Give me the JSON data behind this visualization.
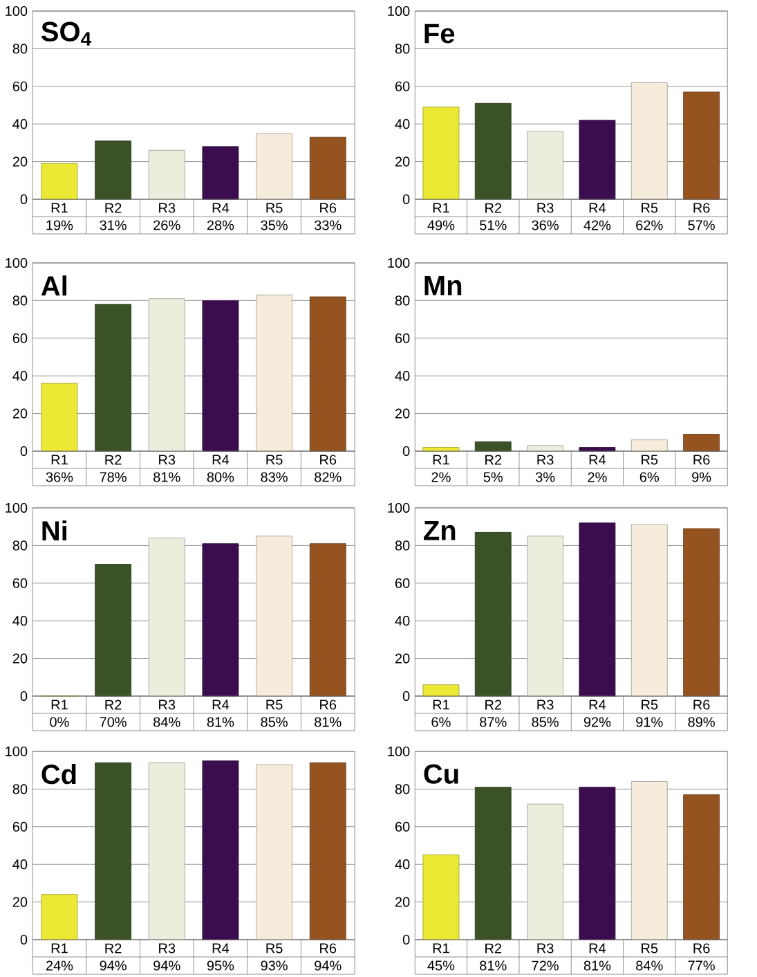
{
  "chart_data": [
    {
      "type": "bar",
      "title": "SO$_{4}$",
      "categories": [
        "R1",
        "R2",
        "R3",
        "R4",
        "R5",
        "R6"
      ],
      "values": [
        19,
        31,
        26,
        28,
        35,
        33
      ],
      "value_labels": [
        "19%",
        "31%",
        "26%",
        "28%",
        "35%",
        "33%"
      ],
      "colors": [
        "#ece934",
        "#3a5226",
        "#e9efdc",
        "#3b0d4f",
        "#f5ecdc",
        "#95531f"
      ],
      "ylim": [
        0,
        100
      ],
      "yticks": [
        0,
        20,
        40,
        60,
        80,
        100
      ],
      "grid": "y"
    },
    {
      "type": "bar",
      "title": "Fe",
      "categories": [
        "R1",
        "R2",
        "R3",
        "R4",
        "R5",
        "R6"
      ],
      "values": [
        49,
        51,
        36,
        42,
        62,
        57
      ],
      "value_labels": [
        "49%",
        "51%",
        "36%",
        "42%",
        "62%",
        "57%"
      ],
      "colors": [
        "#ece934",
        "#3a5226",
        "#e9efdc",
        "#3b0d4f",
        "#f5ecdc",
        "#95531f"
      ],
      "ylim": [
        0,
        100
      ],
      "yticks": [
        0,
        20,
        40,
        60,
        80,
        100
      ],
      "grid": "y"
    },
    {
      "type": "bar",
      "title": "Al",
      "categories": [
        "R1",
        "R2",
        "R3",
        "R4",
        "R5",
        "R6"
      ],
      "values": [
        36,
        78,
        81,
        80,
        83,
        82
      ],
      "value_labels": [
        "36%",
        "78%",
        "81%",
        "80%",
        "83%",
        "82%"
      ],
      "colors": [
        "#ece934",
        "#3a5226",
        "#e9efdc",
        "#3b0d4f",
        "#f5ecdc",
        "#95531f"
      ],
      "ylim": [
        0,
        100
      ],
      "yticks": [
        0,
        20,
        40,
        60,
        80,
        100
      ],
      "grid": "y"
    },
    {
      "type": "bar",
      "title": "Mn",
      "categories": [
        "R1",
        "R2",
        "R3",
        "R4",
        "R5",
        "R6"
      ],
      "values": [
        2,
        5,
        3,
        2,
        6,
        9
      ],
      "value_labels": [
        "2%",
        "5%",
        "3%",
        "2%",
        "6%",
        "9%"
      ],
      "colors": [
        "#ece934",
        "#3a5226",
        "#e9efdc",
        "#3b0d4f",
        "#f5ecdc",
        "#95531f"
      ],
      "ylim": [
        0,
        100
      ],
      "yticks": [
        0,
        20,
        40,
        60,
        80,
        100
      ],
      "grid": "y"
    },
    {
      "type": "bar",
      "title": "Ni",
      "categories": [
        "R1",
        "R2",
        "R3",
        "R4",
        "R5",
        "R6"
      ],
      "values": [
        0,
        70,
        84,
        81,
        85,
        81
      ],
      "value_labels": [
        "0%",
        "70%",
        "84%",
        "81%",
        "85%",
        "81%"
      ],
      "colors": [
        "#ece934",
        "#3a5226",
        "#e9efdc",
        "#3b0d4f",
        "#f5ecdc",
        "#95531f"
      ],
      "ylim": [
        0,
        100
      ],
      "yticks": [
        0,
        20,
        40,
        60,
        80,
        100
      ],
      "grid": "y"
    },
    {
      "type": "bar",
      "title": "Zn",
      "categories": [
        "R1",
        "R2",
        "R3",
        "R4",
        "R5",
        "R6"
      ],
      "values": [
        6,
        87,
        85,
        92,
        91,
        89
      ],
      "value_labels": [
        "6%",
        "87%",
        "85%",
        "92%",
        "91%",
        "89%"
      ],
      "colors": [
        "#ece934",
        "#3a5226",
        "#e9efdc",
        "#3b0d4f",
        "#f5ecdc",
        "#95531f"
      ],
      "ylim": [
        0,
        100
      ],
      "yticks": [
        0,
        20,
        40,
        60,
        80,
        100
      ],
      "grid": "y"
    },
    {
      "type": "bar",
      "title": "Cd",
      "categories": [
        "R1",
        "R2",
        "R3",
        "R4",
        "R5",
        "R6"
      ],
      "values": [
        24,
        94,
        94,
        95,
        93,
        94
      ],
      "value_labels": [
        "24%",
        "94%",
        "94%",
        "95%",
        "93%",
        "94%"
      ],
      "colors": [
        "#ece934",
        "#3a5226",
        "#e9efdc",
        "#3b0d4f",
        "#f5ecdc",
        "#95531f"
      ],
      "ylim": [
        0,
        100
      ],
      "yticks": [
        0,
        20,
        40,
        60,
        80,
        100
      ],
      "grid": "y"
    },
    {
      "type": "bar",
      "title": "Cu",
      "categories": [
        "R1",
        "R2",
        "R3",
        "R4",
        "R5",
        "R6"
      ],
      "values": [
        45,
        81,
        72,
        81,
        84,
        77
      ],
      "value_labels": [
        "45%",
        "81%",
        "72%",
        "81%",
        "84%",
        "77%"
      ],
      "colors": [
        "#ece934",
        "#3a5226",
        "#e9efdc",
        "#3b0d4f",
        "#f5ecdc",
        "#95531f"
      ],
      "ylim": [
        0,
        100
      ],
      "yticks": [
        0,
        20,
        40,
        60,
        80,
        100
      ],
      "grid": "y"
    }
  ]
}
